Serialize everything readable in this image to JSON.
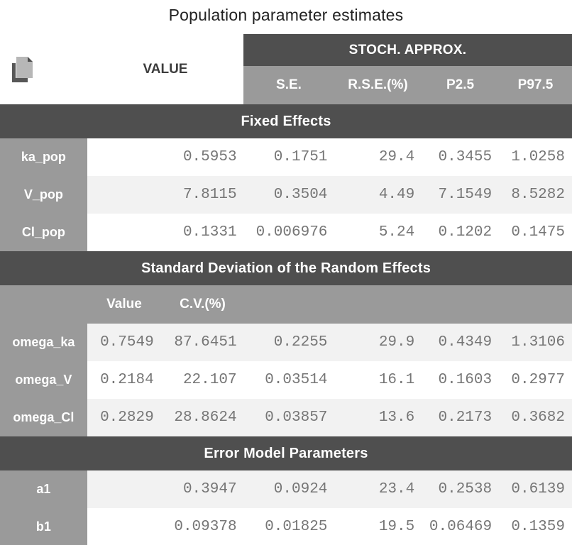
{
  "title": "Population parameter estimates",
  "colors": {
    "band_dark": "#4f4f4f",
    "band_gray": "#9a9a9a",
    "row_shade": "#f2f2f2",
    "row_plain": "#ffffff",
    "number_text": "#767676",
    "header_text": "#ffffff",
    "value_header_text": "#3d3d3d",
    "title_text": "#222222"
  },
  "header": {
    "copy_icon": "copy-icon",
    "value_label": "VALUE",
    "group_label": "STOCH. APPROX.",
    "sub_columns": [
      "S.E.",
      "R.S.E.(%)",
      "P2.5",
      "P97.5"
    ]
  },
  "sections": [
    {
      "label": "Fixed Effects",
      "rows": [
        {
          "param": "ka_pop",
          "value": "0.5953",
          "se": "0.1751",
          "rse": "29.4",
          "p2_5": "0.3455",
          "p97_5": "1.0258",
          "shade": false
        },
        {
          "param": "V_pop",
          "value": "7.8115",
          "se": "0.3504",
          "rse": "4.49",
          "p2_5": "7.1549",
          "p97_5": "8.5282",
          "shade": true
        },
        {
          "param": "Cl_pop",
          "value": "0.1331",
          "se": "0.006976",
          "rse": "5.24",
          "p2_5": "0.1202",
          "p97_5": "0.1475",
          "shade": false
        }
      ]
    },
    {
      "label": "Standard Deviation of the Random Effects",
      "subheader": {
        "value_label": "Value",
        "cv_label": "C.V.(%)"
      },
      "rows": [
        {
          "param": "omega_ka",
          "value": "0.7549",
          "cv": "87.6451",
          "se": "0.2255",
          "rse": "29.9",
          "p2_5": "0.4349",
          "p97_5": "1.3106",
          "shade": true
        },
        {
          "param": "omega_V",
          "value": "0.2184",
          "cv": "22.107",
          "se": "0.03514",
          "rse": "16.1",
          "p2_5": "0.1603",
          "p97_5": "0.2977",
          "shade": false
        },
        {
          "param": "omega_Cl",
          "value": "0.2829",
          "cv": "28.8624",
          "se": "0.03857",
          "rse": "13.6",
          "p2_5": "0.2173",
          "p97_5": "0.3682",
          "shade": true
        }
      ]
    },
    {
      "label": "Error Model Parameters",
      "rows": [
        {
          "param": "a1",
          "value": "0.3947",
          "se": "0.0924",
          "rse": "23.4",
          "p2_5": "0.2538",
          "p97_5": "0.6139",
          "shade": true
        },
        {
          "param": "b1",
          "value": "0.09378",
          "se": "0.01825",
          "rse": "19.5",
          "p2_5": "0.06469",
          "p97_5": "0.1359",
          "shade": false
        }
      ]
    }
  ]
}
